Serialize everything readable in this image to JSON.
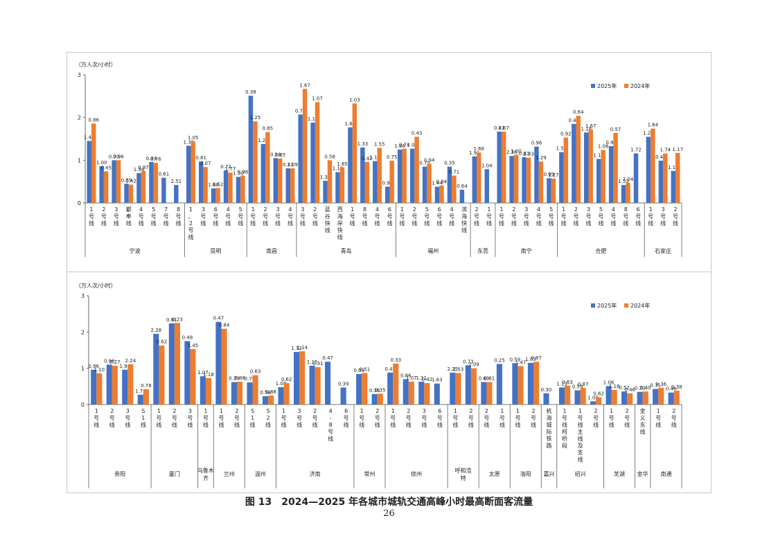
{
  "colors": {
    "y2025": "#4472C4",
    "y2024": "#ED7D31"
  },
  "figure": {
    "caption": "图 13　2024—2025 年各城市城轨交通高峰小时最高断面客流量",
    "page_number": "26"
  },
  "chart_data": [
    {
      "type": "bar",
      "ylabel": "（万人次/小时）",
      "ylim": [
        0,
        3
      ],
      "yticks": [
        0,
        1,
        2,
        3
      ],
      "grid": false,
      "legend_position": "top-right",
      "series": [
        {
          "name": "2025年",
          "values": [
            1.45,
            0.86,
            1.0,
            0.45,
            0.7,
            0.96,
            0.59,
            0.42,
            1.34,
            0.97,
            0.34,
            0.76,
            0.61,
            2.51,
            1.38,
            1.05,
            0.81,
            2.07,
            1.88,
            0.52,
            0.72,
            1.77,
            1.3,
            0.98,
            0.38,
            1.25,
            1.27,
            0.85,
            0.38,
            0.85,
            0.31,
            1.09,
            0.79,
            1.67,
            1.1,
            1.07,
            1.32,
            0.58,
            1.19,
            1.85,
            1.65,
            1.03,
            1.33,
            0.42,
            1.16,
            1.55,
            0.99,
            0.75
          ]
        },
        {
          "name": "2024年",
          "values": [
            1.86,
            0.74,
            1.0,
            0.43,
            0.75,
            0.94,
            null,
            null,
            1.44,
            0.84,
            0.35,
            0.71,
            0.64,
            1.91,
            1.66,
            1.04,
            0.81,
            2.67,
            2.36,
            1.0,
            0.83,
            2.33,
            0.96,
            1.29,
            0.99,
            1.27,
            1.55,
            0.92,
            0.41,
            0.64,
            null,
            1.18,
            null,
            1.67,
            1.13,
            1.06,
            0.97,
            0.57,
            1.53,
            2.04,
            1.72,
            1.24,
            1.64,
            0.47,
            null,
            1.74,
            1.16,
            1.17
          ]
        }
      ],
      "categories": [
        "1号线",
        "2号线",
        "3号线",
        "鄞奉线",
        "4号线",
        "5号线",
        "7号线",
        "8号线",
        "1、2号线",
        "3号线",
        "6号线",
        "4号线",
        "5号线",
        "1号线",
        "2号线",
        "3号线",
        "4号线",
        "3号线",
        "2号线",
        "蓝谷快线",
        "西海岸快线",
        "1号线",
        "8号线",
        "4号线",
        "6号线",
        "1号线",
        "2号线",
        "5号线",
        "6号线",
        "4号线",
        "滨海快线",
        "2号线",
        "1号线",
        "1号线",
        "2号线",
        "3号线",
        "4号线",
        "5号线",
        "1号线",
        "2号线",
        "3号线",
        "5号线",
        "4号线",
        "8号线",
        "6号线",
        "1号线",
        "3号线",
        "2号线"
      ],
      "label_texts": [
        "1.45",
        "0.86",
        "1.00",
        "0.45",
        "0.70",
        "0.96",
        "0.59",
        "0.42",
        "1.34",
        "0.97",
        "0.34",
        "0.76",
        "0.61",
        "2.51",
        "1.38",
        "1.05",
        "0.81",
        "2.07",
        "1.88",
        "0.52",
        "0.72",
        "1.77",
        "1.30",
        "0.98",
        "0.38",
        "1.25",
        "1.27",
        "0.85",
        "0.38",
        "0.85",
        "0.31",
        "1.09",
        "0.79",
        "1.67",
        "1.10",
        "1.07",
        "1.32",
        "0.58",
        "1.19",
        "1.85",
        "1.65",
        "1.03",
        "1.33",
        "0.42",
        "1.16",
        "1.55",
        "0.99",
        "0.75",
        "1.86",
        "0.74",
        "1.00",
        "0.43",
        "0.75",
        "0.94",
        "1.44",
        "0.84",
        "0.35",
        "0.71",
        "0.64",
        "1.91",
        "1.66",
        "1.04",
        "0.81",
        "2.67",
        "2.36",
        "1.00",
        "0.83",
        "2.33",
        "0.96",
        "1.29",
        "0.99",
        "1.27",
        "1.55",
        "0.92",
        "0.41",
        "0.64",
        "1.18",
        "1.67",
        "1.13",
        "1.06",
        "0.97",
        "0.57",
        "1.53",
        "2.04",
        "1.72",
        "1.24",
        "1.64",
        "0.47",
        "1.74",
        "1.16",
        "1.17"
      ],
      "groups": [
        {
          "name": "宁波",
          "count": 8
        },
        {
          "name": "昆明",
          "count": 5
        },
        {
          "name": "南昌",
          "count": 4
        },
        {
          "name": "青岛",
          "count": 8
        },
        {
          "name": "福州",
          "count": 6
        },
        {
          "name": "东莞",
          "count": 2
        },
        {
          "name": "南宁",
          "count": 5
        },
        {
          "name": "合肥",
          "count": 7
        },
        {
          "name": "石家庄",
          "count": 3
        }
      ]
    },
    {
      "type": "bar",
      "ylabel": "（万人次/小时）",
      "ylim": [
        0,
        3
      ],
      "yticks": [
        0,
        1,
        2,
        3
      ],
      "grid": false,
      "legend_position": "top-right",
      "series": [
        {
          "name": "2025年",
          "values": [
            0.96,
            1.1,
            0.96,
            0.27,
            1.95,
            2.24,
            1.75,
            0.78,
            2.28,
            0.62,
            0.61,
            0.23,
            0.48,
            1.45,
            1.07,
            1.18,
            0.47,
            0.84,
            0.29,
            0.88,
            0.7,
            0.63,
            0.58,
            0.88,
            1.08,
            0.62,
            1.12,
            1.14,
            1.15,
            0.31,
            0.47,
            0.39,
            0.09,
            0.51,
            0.36,
            0.35,
            0.43,
            0.33
          ]
        },
        {
          "name": "2024年",
          "values": [
            0.86,
            1.07,
            1.11,
            0.42,
            1.63,
            2.25,
            1.53,
            0.73,
            2.09,
            0.63,
            0.81,
            0.25,
            0.59,
            1.47,
            1.03,
            null,
            null,
            0.87,
            0.3,
            1.13,
            0.63,
            0.59,
            null,
            0.87,
            1.0,
            0.62,
            null,
            1.06,
            1.18,
            null,
            0.52,
            0.46,
            0.2,
            0.4,
            0.31,
            0.36,
            0.46,
            0.38
          ]
        }
      ],
      "categories": [
        "1号线",
        "2号线",
        "3号线",
        "S1线",
        "1号线",
        "2号线",
        "3号线",
        "1号线",
        "1号线",
        "2号线",
        "S1线",
        "S2线",
        "1号线",
        "3号线",
        "2号线",
        "4-8号线",
        "6号线",
        "1号线",
        "2号线",
        "1号线",
        "2号线",
        "3号线",
        "6号线",
        "1号线",
        "2号线",
        "2号线",
        "1号线",
        "1号线",
        "2号线",
        "杭海城际铁路",
        "1号线柯桥段",
        "1号线主线及支线",
        "2号线",
        "1号线",
        "2号线",
        "金义东线",
        "1号线",
        "2号线"
      ],
      "label_texts": [
        "0.96",
        "1.10",
        "0.96",
        "0.27",
        "1.95",
        "2.24",
        "1.75",
        "0.78",
        "2.28",
        "0.62",
        "0.61",
        "0.23",
        "0.48",
        "1.45",
        "1.07",
        "1.18",
        "0.47",
        "0.84",
        "0.29",
        "0.88",
        "0.70",
        "0.63",
        "0.58",
        "0.88",
        "1.08",
        "0.62",
        "1.12",
        "1.14",
        "1.15",
        "0.31",
        "0.47",
        "0.39",
        "0.09",
        "0.51",
        "0.36",
        "0.35",
        "0.43",
        "0.33",
        "0.86",
        "1.07",
        "1.11",
        "0.42",
        "1.63",
        "2.25",
        "1.53",
        "0.73",
        "2.09",
        "0.63",
        "0.81",
        "0.25",
        "0.59",
        "1.47",
        "1.03",
        "0.87",
        "0.30",
        "1.13",
        "0.63",
        "0.59",
        "0.87",
        "1.00",
        "0.62",
        "1.06",
        "1.18",
        "0.52",
        "0.46",
        "0.20",
        "0.40",
        "0.31",
        "0.36",
        "0.46",
        "0.38"
      ],
      "groups": [
        {
          "name": "贵阳",
          "count": 4
        },
        {
          "name": "厦门",
          "count": 3
        },
        {
          "name": "乌鲁木齐",
          "count": 1
        },
        {
          "name": "兰州",
          "count": 2
        },
        {
          "name": "温州",
          "count": 2
        },
        {
          "name": "济南",
          "count": 5
        },
        {
          "name": "常州",
          "count": 2
        },
        {
          "name": "徐州",
          "count": 4
        },
        {
          "name": "呼和浩特",
          "count": 2
        },
        {
          "name": "太原",
          "count": 2
        },
        {
          "name": "洛阳",
          "count": 2
        },
        {
          "name": "嘉兴",
          "count": 1
        },
        {
          "name": "绍兴",
          "count": 3
        },
        {
          "name": "芜湖",
          "count": 2
        },
        {
          "name": "金华",
          "count": 1
        },
        {
          "name": "南通",
          "count": 2
        }
      ]
    }
  ]
}
